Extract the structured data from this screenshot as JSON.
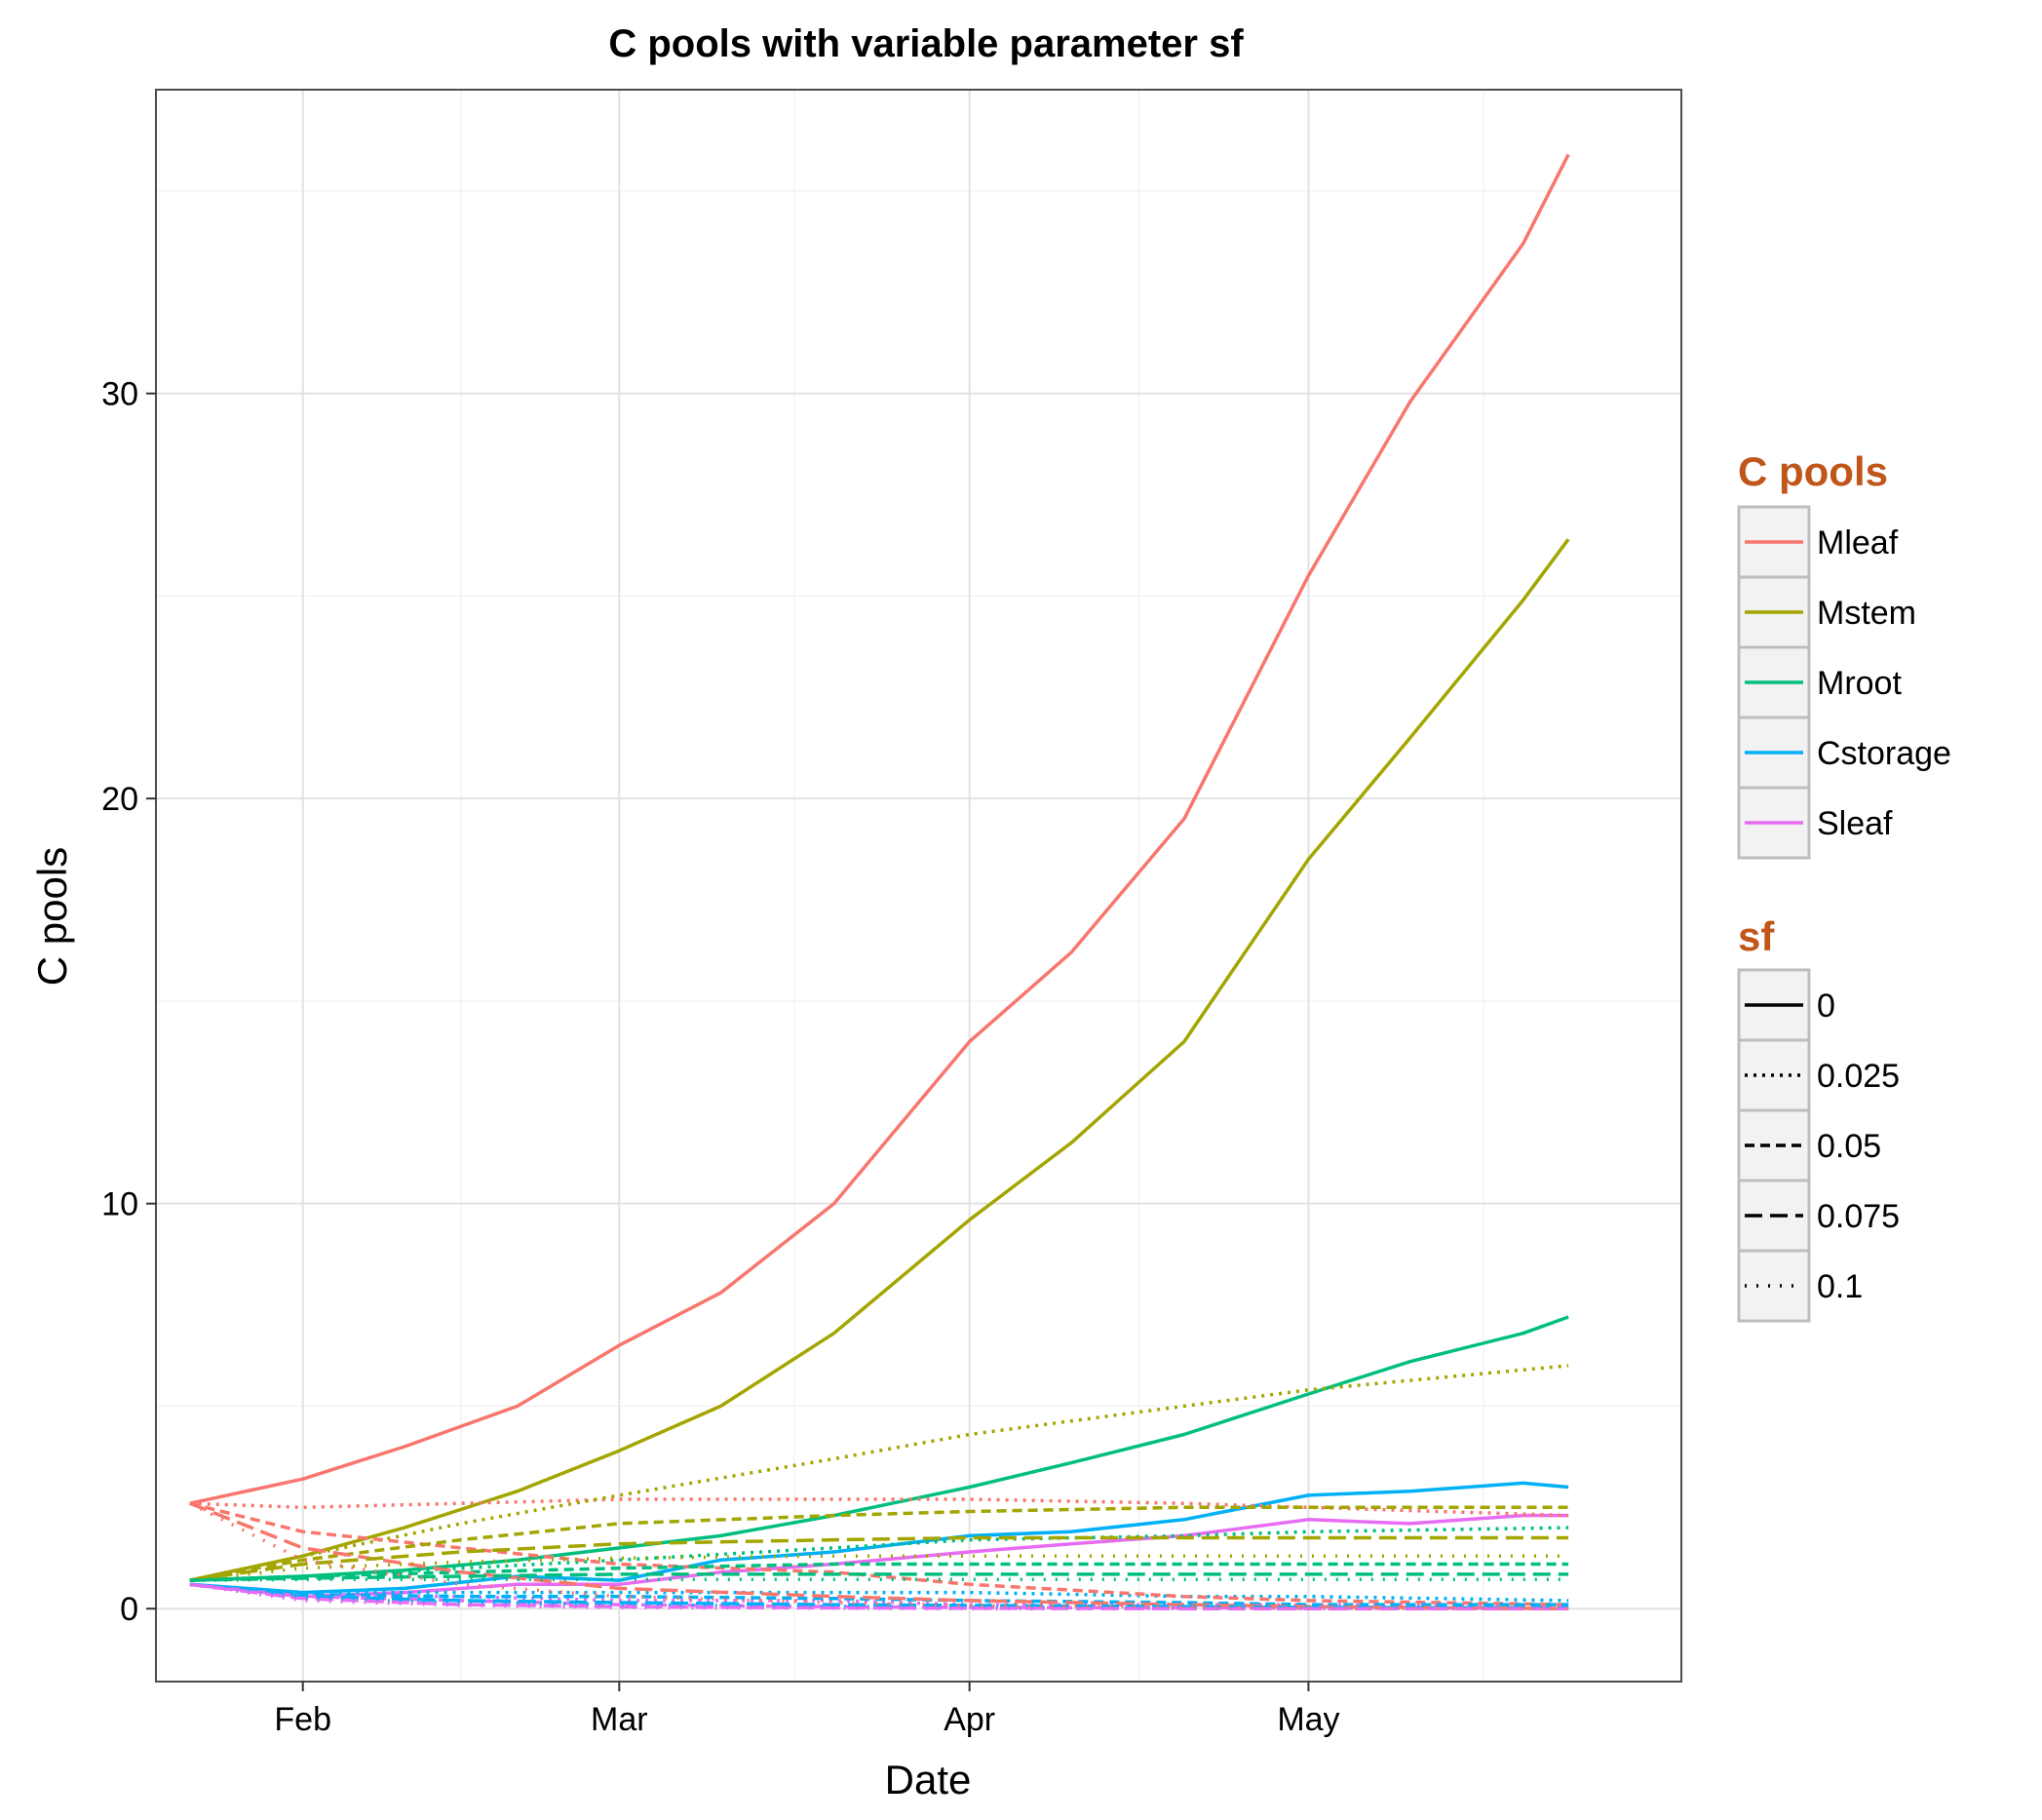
{
  "chart_data": {
    "type": "line",
    "title": "C pools with variable parameter sf",
    "xlabel": "Date",
    "ylabel": "C pools",
    "x_ticks": [
      "Feb",
      "Mar",
      "Apr",
      "May"
    ],
    "x_tick_dates": [
      "Feb 1",
      "Mar 1",
      "Apr 1",
      "May 1"
    ],
    "y_ticks": [
      "0",
      "10",
      "20",
      "30"
    ],
    "y_tick_values": [
      0,
      10,
      20,
      30
    ],
    "xlim": [
      "Jan 19",
      "Jun 3"
    ],
    "ylim": [
      -1.8,
      37.5
    ],
    "x_range_dates": [
      "Jan 22",
      "May 24"
    ],
    "grid": true,
    "legend_position": "right",
    "legend_color": {
      "title": "C pools",
      "title_color": "#c0561a",
      "entries": [
        {
          "name": "Mleaf",
          "color": "#F8766D"
        },
        {
          "name": "Mstem",
          "color": "#A3A500"
        },
        {
          "name": "Mroot",
          "color": "#00BF7D"
        },
        {
          "name": "Cstorage",
          "color": "#00B0F6"
        },
        {
          "name": "Sleaf",
          "color": "#E76BF3"
        }
      ]
    },
    "legend_linetype": {
      "title": "sf",
      "title_color": "#c0561a",
      "entries": [
        {
          "label": "0",
          "dash": "solid"
        },
        {
          "label": "0.025",
          "dash": "dotted-short"
        },
        {
          "label": "0.05",
          "dash": "dashed"
        },
        {
          "label": "0.075",
          "dash": "longdash"
        },
        {
          "label": "0.1",
          "dash": "dotted"
        }
      ]
    },
    "series": [
      {
        "pool": "Mleaf",
        "sf": "0",
        "x": [
          "Jan 22",
          "Feb 1",
          "Feb 10",
          "Feb 20",
          "Mar 1",
          "Mar 10",
          "Mar 20",
          "Apr 1",
          "Apr 10",
          "Apr 20",
          "May 1",
          "May 10",
          "May 20",
          "May 24"
        ],
        "y": [
          2.6,
          3.2,
          4.0,
          5.0,
          6.5,
          7.8,
          10.0,
          14.0,
          16.2,
          19.5,
          25.5,
          29.8,
          33.7,
          35.9
        ]
      },
      {
        "pool": "Mstem",
        "sf": "0",
        "x": [
          "Jan 22",
          "Feb 1",
          "Feb 10",
          "Feb 20",
          "Mar 1",
          "Mar 10",
          "Mar 20",
          "Apr 1",
          "Apr 10",
          "Apr 20",
          "May 1",
          "May 10",
          "May 20",
          "May 24"
        ],
        "y": [
          0.7,
          1.3,
          2.0,
          2.9,
          3.9,
          5.0,
          6.8,
          9.6,
          11.5,
          14.0,
          18.5,
          21.5,
          24.9,
          26.4
        ]
      },
      {
        "pool": "Mroot",
        "sf": "0",
        "x": [
          "Jan 22",
          "Feb 1",
          "Feb 10",
          "Feb 20",
          "Mar 1",
          "Mar 10",
          "Mar 20",
          "Apr 1",
          "Apr 10",
          "Apr 20",
          "May 1",
          "May 10",
          "May 20",
          "May 24"
        ],
        "y": [
          0.7,
          0.8,
          0.95,
          1.2,
          1.5,
          1.8,
          2.3,
          3.0,
          3.6,
          4.3,
          5.3,
          6.1,
          6.8,
          7.2
        ]
      },
      {
        "pool": "Cstorage",
        "sf": "0",
        "x": [
          "Jan 22",
          "Feb 1",
          "Feb 10",
          "Feb 20",
          "Mar 1",
          "Mar 10",
          "Mar 20",
          "Apr 1",
          "Apr 10",
          "Apr 20",
          "May 1",
          "May 10",
          "May 20",
          "May 24"
        ],
        "y": [
          0.6,
          0.4,
          0.5,
          0.8,
          0.7,
          1.2,
          1.4,
          1.8,
          1.9,
          2.2,
          2.8,
          2.9,
          3.1,
          3.0
        ]
      },
      {
        "pool": "Sleaf",
        "sf": "0",
        "x": [
          "Jan 22",
          "Feb 1",
          "Feb 10",
          "Feb 20",
          "Mar 1",
          "Mar 10",
          "Mar 20",
          "Apr 1",
          "Apr 10",
          "Apr 20",
          "May 1",
          "May 10",
          "May 20",
          "May 24"
        ],
        "y": [
          0.6,
          0.3,
          0.4,
          0.6,
          0.6,
          0.9,
          1.1,
          1.4,
          1.6,
          1.8,
          2.2,
          2.1,
          2.3,
          2.3
        ]
      },
      {
        "pool": "Mleaf",
        "sf": "0.025",
        "x": [
          "Jan 22",
          "Feb 1",
          "Feb 15",
          "Mar 1",
          "Mar 20",
          "Apr 1",
          "Apr 20",
          "May 1",
          "May 24"
        ],
        "y": [
          2.6,
          2.5,
          2.6,
          2.7,
          2.7,
          2.7,
          2.6,
          2.5,
          2.3
        ]
      },
      {
        "pool": "Mstem",
        "sf": "0.025",
        "x": [
          "Jan 22",
          "Feb 1",
          "Feb 15",
          "Mar 1",
          "Mar 20",
          "Apr 1",
          "Apr 20",
          "May 1",
          "May 24"
        ],
        "y": [
          0.7,
          1.3,
          2.1,
          2.8,
          3.7,
          4.3,
          5.0,
          5.4,
          6.0
        ]
      },
      {
        "pool": "Mroot",
        "sf": "0.025",
        "x": [
          "Jan 22",
          "Feb 1",
          "Feb 15",
          "Mar 1",
          "Mar 20",
          "Apr 1",
          "Apr 20",
          "May 1",
          "May 24"
        ],
        "y": [
          0.7,
          0.8,
          1.0,
          1.2,
          1.5,
          1.7,
          1.8,
          1.9,
          2.0
        ]
      },
      {
        "pool": "Cstorage",
        "sf": "0.025",
        "x": [
          "Jan 22",
          "Feb 1",
          "Feb 15",
          "Mar 1",
          "Mar 20",
          "Apr 1",
          "Apr 20",
          "May 1",
          "May 24"
        ],
        "y": [
          0.6,
          0.4,
          0.4,
          0.4,
          0.4,
          0.4,
          0.3,
          0.3,
          0.2
        ]
      },
      {
        "pool": "Sleaf",
        "sf": "0.025",
        "x": [
          "Jan 22",
          "Feb 1",
          "Feb 15",
          "Mar 1",
          "Mar 20",
          "Apr 1",
          "Apr 20",
          "May 1",
          "May 24"
        ],
        "y": [
          0.6,
          0.3,
          0.3,
          0.2,
          0.2,
          0.1,
          0.1,
          0.1,
          0.05
        ]
      },
      {
        "pool": "Mleaf",
        "sf": "0.05",
        "x": [
          "Jan 22",
          "Feb 1",
          "Feb 15",
          "Mar 1",
          "Mar 20",
          "Apr 1",
          "Apr 20",
          "May 1",
          "May 24"
        ],
        "y": [
          2.6,
          1.9,
          1.5,
          1.1,
          0.9,
          0.6,
          0.3,
          0.2,
          0.1
        ]
      },
      {
        "pool": "Mstem",
        "sf": "0.05",
        "x": [
          "Jan 22",
          "Feb 1",
          "Feb 15",
          "Mar 1",
          "Mar 20",
          "Apr 1",
          "Apr 20",
          "May 1",
          "May 24"
        ],
        "y": [
          0.7,
          1.2,
          1.7,
          2.1,
          2.3,
          2.4,
          2.5,
          2.5,
          2.5
        ]
      },
      {
        "pool": "Mroot",
        "sf": "0.05",
        "x": [
          "Jan 22",
          "Feb 1",
          "Feb 15",
          "Mar 1",
          "Mar 20",
          "Apr 1",
          "Apr 20",
          "May 1",
          "May 24"
        ],
        "y": [
          0.7,
          0.8,
          0.9,
          1.0,
          1.1,
          1.1,
          1.1,
          1.1,
          1.1
        ]
      },
      {
        "pool": "Cstorage",
        "sf": "0.05",
        "x": [
          "Jan 22",
          "Feb 1",
          "Feb 15",
          "Mar 1",
          "Mar 20",
          "Apr 1",
          "Apr 20",
          "May 1",
          "May 24"
        ],
        "y": [
          0.6,
          0.35,
          0.3,
          0.3,
          0.25,
          0.2,
          0.15,
          0.1,
          0.1
        ]
      },
      {
        "pool": "Sleaf",
        "sf": "0.05",
        "x": [
          "Jan 22",
          "Feb 1",
          "Feb 15",
          "Mar 1",
          "Mar 20",
          "Apr 1",
          "Apr 20",
          "May 1",
          "May 24"
        ],
        "y": [
          0.6,
          0.3,
          0.2,
          0.1,
          0.05,
          0.03,
          0.02,
          0.01,
          0.0
        ]
      },
      {
        "pool": "Mleaf",
        "sf": "0.075",
        "x": [
          "Jan 22",
          "Feb 1",
          "Feb 15",
          "Mar 1",
          "Mar 20",
          "Apr 1",
          "Apr 20",
          "May 1",
          "May 24"
        ],
        "y": [
          2.6,
          1.5,
          0.9,
          0.5,
          0.3,
          0.2,
          0.1,
          0.05,
          0.0
        ]
      },
      {
        "pool": "Mstem",
        "sf": "0.075",
        "x": [
          "Jan 22",
          "Feb 1",
          "Feb 15",
          "Mar 1",
          "Mar 20",
          "Apr 1",
          "Apr 20",
          "May 1",
          "May 24"
        ],
        "y": [
          0.7,
          1.1,
          1.4,
          1.6,
          1.7,
          1.75,
          1.75,
          1.75,
          1.75
        ]
      },
      {
        "pool": "Mroot",
        "sf": "0.075",
        "x": [
          "Jan 22",
          "Feb 1",
          "Feb 15",
          "Mar 1",
          "Mar 20",
          "Apr 1",
          "Apr 20",
          "May 1",
          "May 24"
        ],
        "y": [
          0.7,
          0.75,
          0.8,
          0.85,
          0.85,
          0.85,
          0.85,
          0.85,
          0.85
        ]
      },
      {
        "pool": "Cstorage",
        "sf": "0.075",
        "x": [
          "Jan 22",
          "Feb 1",
          "Feb 15",
          "Mar 1",
          "Mar 20",
          "Apr 1",
          "Apr 20",
          "May 1",
          "May 24"
        ],
        "y": [
          0.6,
          0.3,
          0.2,
          0.15,
          0.1,
          0.08,
          0.05,
          0.03,
          0.02
        ]
      },
      {
        "pool": "Sleaf",
        "sf": "0.075",
        "x": [
          "Jan 22",
          "Feb 1",
          "Feb 15",
          "Mar 1",
          "Mar 20",
          "Apr 1",
          "Apr 20",
          "May 1",
          "May 24"
        ],
        "y": [
          0.6,
          0.25,
          0.1,
          0.05,
          0.02,
          0.01,
          0.0,
          0.0,
          0.0
        ]
      },
      {
        "pool": "Mleaf",
        "sf": "0.1",
        "x": [
          "Jan 22",
          "Feb 1",
          "Feb 15",
          "Mar 1",
          "Mar 20",
          "Apr 1",
          "Apr 20",
          "May 1",
          "May 24"
        ],
        "y": [
          2.6,
          1.2,
          0.6,
          0.3,
          0.15,
          0.08,
          0.04,
          0.02,
          0.0
        ]
      },
      {
        "pool": "Mstem",
        "sf": "0.1",
        "x": [
          "Jan 22",
          "Feb 1",
          "Feb 15",
          "Mar 1",
          "Mar 20",
          "Apr 1",
          "Apr 20",
          "May 1",
          "May 24"
        ],
        "y": [
          0.7,
          1.0,
          1.15,
          1.25,
          1.3,
          1.3,
          1.3,
          1.3,
          1.3
        ]
      },
      {
        "pool": "Mroot",
        "sf": "0.1",
        "x": [
          "Jan 22",
          "Feb 1",
          "Feb 15",
          "Mar 1",
          "Mar 20",
          "Apr 1",
          "Apr 20",
          "May 1",
          "May 24"
        ],
        "y": [
          0.7,
          0.72,
          0.72,
          0.72,
          0.72,
          0.72,
          0.72,
          0.72,
          0.72
        ]
      },
      {
        "pool": "Cstorage",
        "sf": "0.1",
        "x": [
          "Jan 22",
          "Feb 1",
          "Feb 15",
          "Mar 1",
          "Mar 20",
          "Apr 1",
          "Apr 20",
          "May 1",
          "May 24"
        ],
        "y": [
          0.6,
          0.25,
          0.15,
          0.1,
          0.05,
          0.03,
          0.02,
          0.01,
          0.0
        ]
      },
      {
        "pool": "Sleaf",
        "sf": "0.1",
        "x": [
          "Jan 22",
          "Feb 1",
          "Feb 15",
          "Mar 1",
          "Mar 20",
          "Apr 1",
          "Apr 20",
          "May 1",
          "May 24"
        ],
        "y": [
          0.6,
          0.2,
          0.08,
          0.03,
          0.01,
          0.0,
          0.0,
          0.0,
          0.0
        ]
      }
    ]
  }
}
